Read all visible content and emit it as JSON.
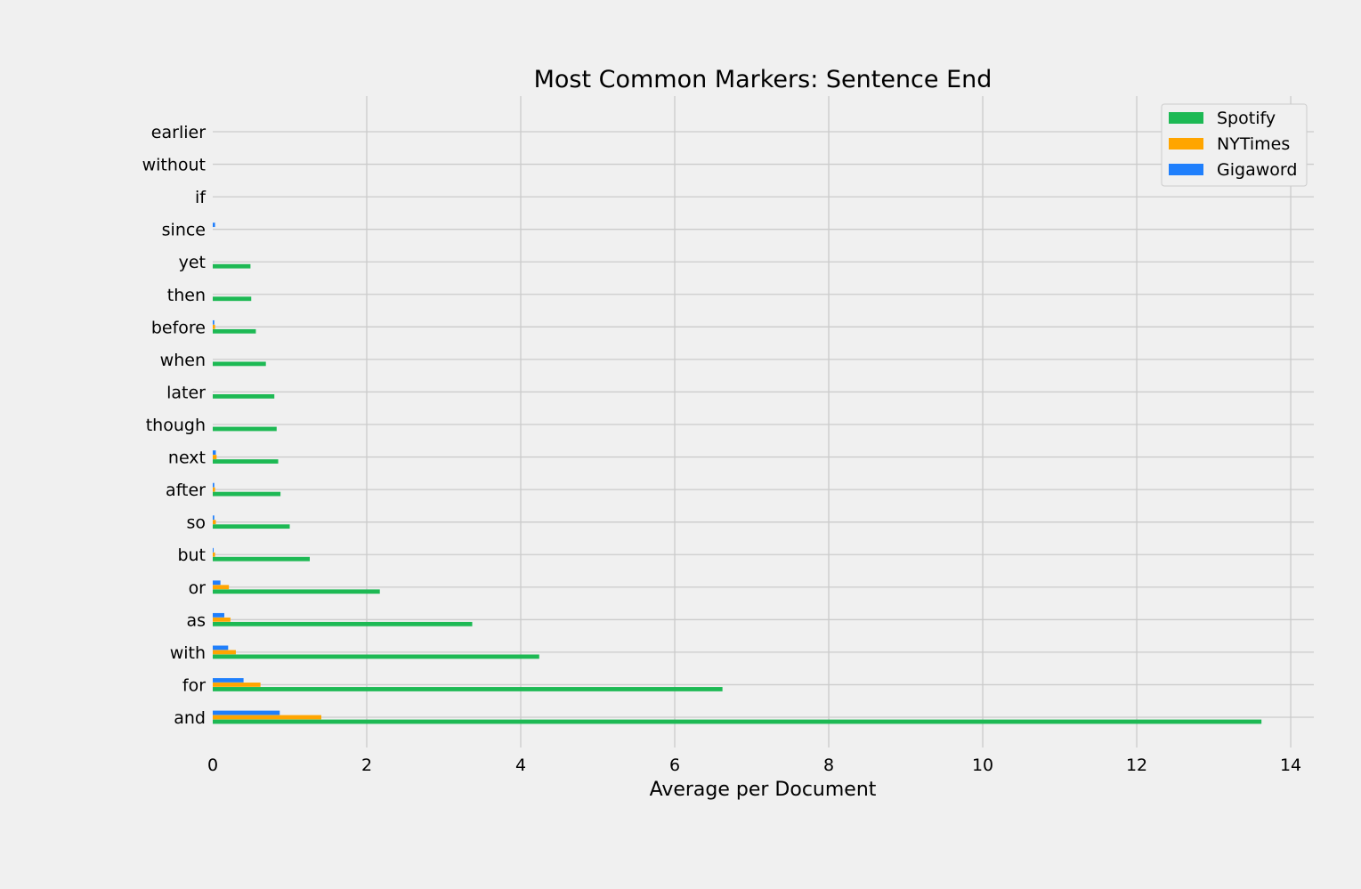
{
  "chart_data": {
    "type": "bar",
    "orientation": "horizontal",
    "title": "Most Common Markers: Sentence End",
    "xlabel": "Average per Document",
    "ylabel": "",
    "xlim": [
      0,
      14.3
    ],
    "xticks": [
      0,
      2,
      4,
      6,
      8,
      10,
      12,
      14
    ],
    "grid": true,
    "legend_position": "top-right",
    "categories": [
      "and",
      "for",
      "with",
      "as",
      "or",
      "but",
      "so",
      "after",
      "next",
      "though",
      "later",
      "when",
      "before",
      "then",
      "yet",
      "since",
      "if",
      "without",
      "earlier"
    ],
    "series": [
      {
        "name": "Spotify",
        "color": "#1db954",
        "values": [
          13.62,
          6.62,
          4.24,
          3.37,
          2.17,
          1.26,
          1.0,
          0.88,
          0.85,
          0.83,
          0.8,
          0.69,
          0.56,
          0.5,
          0.49,
          0.0,
          0.0,
          0.0,
          0.0
        ]
      },
      {
        "name": "NYTimes",
        "color": "#ffa500",
        "values": [
          1.41,
          0.62,
          0.3,
          0.23,
          0.21,
          0.03,
          0.04,
          0.03,
          0.05,
          0.0,
          0.0,
          0.0,
          0.03,
          0.0,
          0.0,
          0.0,
          0.0,
          0.0,
          0.0
        ]
      },
      {
        "name": "Gigaword",
        "color": "#1f7ffc",
        "values": [
          0.87,
          0.4,
          0.2,
          0.15,
          0.1,
          0.01,
          0.02,
          0.02,
          0.04,
          0.0,
          0.0,
          0.0,
          0.02,
          0.0,
          0.0,
          0.03,
          0.0,
          0.0,
          0.0
        ]
      }
    ]
  }
}
